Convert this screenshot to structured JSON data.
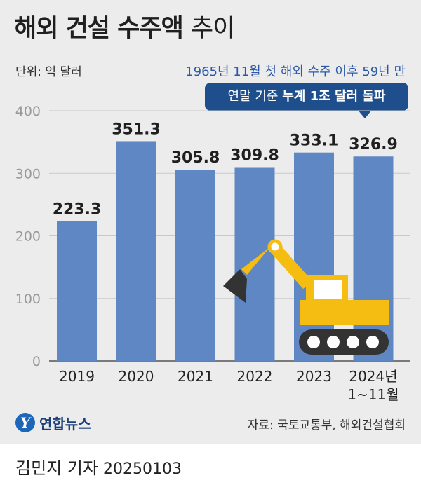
{
  "title": {
    "main": "해외 건설 수주액",
    "suffix": "추이"
  },
  "unit_note": "단위: 억 달러",
  "subtitle": "1965년 11월 첫 해외 수주 이후 59년 만",
  "callout": {
    "prefix": "연말 기준",
    "highlight": "누계 1조 달러 돌파"
  },
  "source": "자료: 국토교통부, 해외건설협회",
  "logo_text": "연합뉴스",
  "byline": {
    "name": "김민지 기자",
    "date": "20250103"
  },
  "colors": {
    "bar": "#5f87c4",
    "panel": "#ececec",
    "callout": "#1f4e8c",
    "excavator": "#f5bd12"
  },
  "icons": {
    "logo": "yonhap-logo-icon",
    "illustration": "excavator-icon"
  },
  "chart_data": {
    "type": "bar",
    "categories": [
      {
        "line1": "2019",
        "line2": ""
      },
      {
        "line1": "2020",
        "line2": ""
      },
      {
        "line1": "2021",
        "line2": ""
      },
      {
        "line1": "2022",
        "line2": ""
      },
      {
        "line1": "2023",
        "line2": ""
      },
      {
        "line1": "2024년",
        "line2": "1~11월"
      }
    ],
    "values": [
      223.3,
      351.3,
      305.8,
      309.8,
      333.1,
      326.9
    ],
    "value_labels": [
      "223.3",
      "351.3",
      "305.8",
      "309.8",
      "333.1",
      "326.9"
    ],
    "ylim": [
      0,
      400
    ],
    "yticks": [
      0,
      100,
      200,
      300,
      400
    ],
    "grid": true
  }
}
